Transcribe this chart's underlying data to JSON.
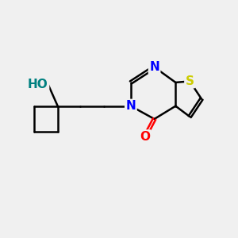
{
  "bg_color": "#f0f0f0",
  "bond_color": "#000000",
  "bond_width": 1.8,
  "atom_colors": {
    "N": "#0000ff",
    "O": "#ff0000",
    "S": "#cccc00",
    "Ho": "#008080",
    "C": "#000000"
  },
  "font_size_atoms": 11,
  "font_size_small": 9
}
